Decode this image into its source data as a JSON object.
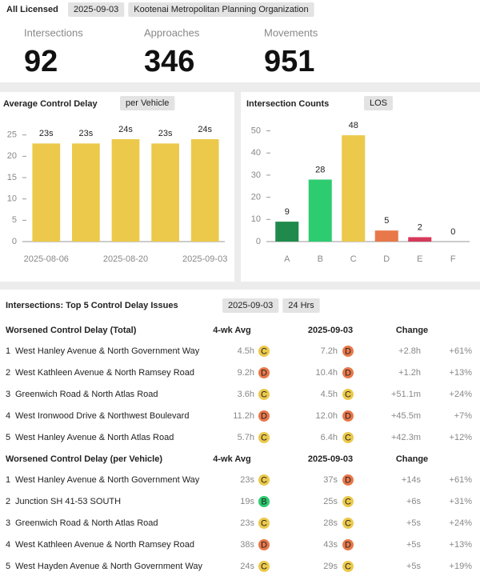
{
  "header": {
    "title": "All Licensed",
    "chips": [
      "2025-09-03",
      "Kootenai Metropolitan Planning Organization"
    ]
  },
  "kpis": [
    {
      "label": "Intersections",
      "value": 92
    },
    {
      "label": "Approaches",
      "value": 346
    },
    {
      "label": "Movements",
      "value": 951
    }
  ],
  "chart_data": [
    {
      "type": "bar",
      "title": "Average Control Delay",
      "chip": "per Vehicle",
      "categories": [
        "2025-08-06",
        null,
        "2025-08-20",
        null,
        "2025-09-03"
      ],
      "values": [
        23,
        23,
        24,
        23,
        24
      ],
      "value_labels": [
        "23s",
        "23s",
        "24s",
        "23s",
        "24s"
      ],
      "color": "#ecc94b",
      "ylim": [
        0,
        27
      ],
      "yticks": [
        0,
        5,
        10,
        15,
        20,
        25
      ]
    },
    {
      "type": "bar",
      "title": "Intersection Counts",
      "chip": "LOS",
      "categories": [
        "A",
        "B",
        "C",
        "D",
        "E",
        "F"
      ],
      "values": [
        9,
        28,
        48,
        5,
        2,
        0
      ],
      "colors": [
        "#1f8a4c",
        "#2ecc71",
        "#ecc94b",
        "#e8784a",
        "#d6395a",
        "#999999"
      ],
      "ylim": [
        0,
        52
      ],
      "yticks": [
        0,
        10,
        20,
        30,
        40,
        50
      ]
    }
  ],
  "table": {
    "title": "Intersections: Top 5 Control Delay Issues",
    "chips": [
      "2025-09-03",
      "24 Hrs"
    ],
    "sections": [
      {
        "columns": [
          "Worsened Control Delay (Total)",
          "4-wk Avg",
          "2025-09-03",
          "Change"
        ],
        "rows": [
          [
            1,
            "West Hanley Avenue & North Government Way",
            "4.5h",
            "C",
            "7.2h",
            "D",
            "+2.8h",
            "+61%"
          ],
          [
            2,
            "West Kathleen Avenue & North Ramsey Road",
            "9.2h",
            "D",
            "10.4h",
            "D",
            "+1.2h",
            "+13%"
          ],
          [
            3,
            "Greenwich Road & North Atlas Road",
            "3.6h",
            "C",
            "4.5h",
            "C",
            "+51.1m",
            "+24%"
          ],
          [
            4,
            "West Ironwood Drive & Northwest Boulevard",
            "11.2h",
            "D",
            "12.0h",
            "D",
            "+45.5m",
            "+7%"
          ],
          [
            5,
            "West Hanley Avenue & North Atlas Road",
            "5.7h",
            "C",
            "6.4h",
            "C",
            "+42.3m",
            "+12%"
          ]
        ]
      },
      {
        "columns": [
          "Worsened Control Delay (per Vehicle)",
          "4-wk Avg",
          "2025-09-03",
          "Change"
        ],
        "rows": [
          [
            1,
            "West Hanley Avenue & North Government Way",
            "23s",
            "C",
            "37s",
            "D",
            "+14s",
            "+61%"
          ],
          [
            2,
            "Junction SH 41-53 SOUTH",
            "19s",
            "B",
            "25s",
            "C",
            "+6s",
            "+31%"
          ],
          [
            3,
            "Greenwich Road & North Atlas Road",
            "23s",
            "C",
            "28s",
            "C",
            "+5s",
            "+24%"
          ],
          [
            4,
            "West Kathleen Avenue & North Ramsey Road",
            "38s",
            "D",
            "43s",
            "D",
            "+5s",
            "+13%"
          ],
          [
            5,
            "West Hayden Avenue & North Government Way",
            "24s",
            "C",
            "29s",
            "C",
            "+5s",
            "+19%"
          ]
        ]
      }
    ]
  }
}
